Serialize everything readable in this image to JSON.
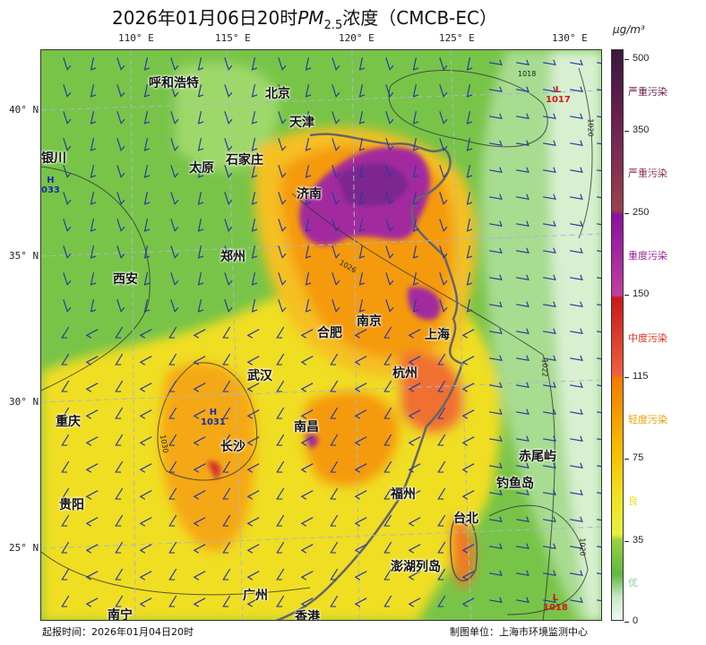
{
  "title": {
    "prefix": "2026年01月06日20时",
    "pm": "PM",
    "sub": "2.5",
    "suffix": "浓度（CMCB-EC）"
  },
  "unit": "μg/m³",
  "lon_labels": [
    "110° E",
    "115° E",
    "120° E",
    "125° E",
    "130° E"
  ],
  "lat_labels": [
    "40° N",
    "35° N",
    "30° N",
    "25° N"
  ],
  "cities": [
    "呼和浩特",
    "北京",
    "天津",
    "银川",
    "太原",
    "石家庄",
    "济南",
    "郑州",
    "西安",
    "南京",
    "合肥",
    "上海",
    "武汉",
    "杭州",
    "重庆",
    "长沙",
    "南昌",
    "赤尾屿",
    "钓鱼岛",
    "福州",
    "贵阳",
    "台北",
    "澎湖列岛",
    "广州",
    "南宁",
    "香港"
  ],
  "pressure_centers": [
    {
      "type": "H",
      "value": "033"
    },
    {
      "type": "H",
      "value": "1031"
    },
    {
      "type": "L",
      "value": "1017"
    },
    {
      "type": "L",
      "value": "1018"
    }
  ],
  "isobar_labels": [
    "1018",
    "1020",
    "1026",
    "1022",
    "1030",
    "1020"
  ],
  "colorbar": {
    "ticks": [
      "500",
      "350",
      "250",
      "150",
      "115",
      "75",
      "35",
      "0"
    ],
    "categories": [
      {
        "label": "严重污染",
        "color": "#6a2050"
      },
      {
        "label": "严重污染",
        "color": "#8a3050"
      },
      {
        "label": "重度污染",
        "color": "#a0209a"
      },
      {
        "label": "中度污染",
        "color": "#e03020"
      },
      {
        "label": "轻度污染",
        "color": "#f0a000"
      },
      {
        "label": "良",
        "color": "#e8e020"
      },
      {
        "label": "优",
        "color": "#90d090"
      }
    ]
  },
  "footer": {
    "issue_time": "起报时间：2026年01月04日20时",
    "producer": "制图单位：上海市环境监测中心"
  }
}
